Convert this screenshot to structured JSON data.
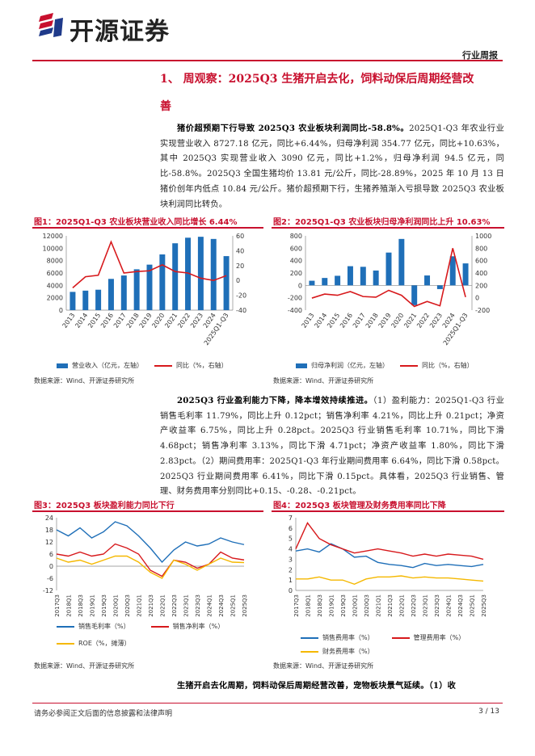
{
  "header": {
    "company": "开源证券",
    "report_type": "行业周报",
    "logo_colors": [
      "#c8102e",
      "#1f3a8a"
    ]
  },
  "section": {
    "title_line1": "1、 周观察：2025Q3 生猪开启去化，饲料动保后周期经营改",
    "title_line2": "善"
  },
  "paragraph1": {
    "lead": "猪价超预期下行导致 2025Q3 农业板块利润同比-58.8%。",
    "body": "2025Q1-Q3 年农业行业实现营业收入 8727.18 亿元，同比+6.44%，归母净利润 354.77 亿元，同比+10.63%，其中 2025Q3 实现营业收入 3090 亿元，同比+1.2%，归母净利润 94.5 亿元，同比-58.8%。2025Q3 全国生猪均价 13.81 元/公斤，同比-28.89%，2025 年 10 月 13 日猪价创年内低点 10.84 元/公斤。猪价超预期下行，生猪养殖渐入亏损导致 2025Q3 农业板块利润同比转负。"
  },
  "paragraph2": {
    "lead": "2025Q3 行业盈利能力下降，降本增效持续推进。",
    "body": "（1）盈利能力：2025Q1-Q3 行业销售毛利率 11.79%，同比上升 0.12pct；销售净利率 4.21%，同比上升 0.21pct；净资产收益率 6.75%，同比上升 0.28pct。2025Q3 行业销售毛利率 10.71%，同比下滑 4.68pct；销售净利率 3.13%，同比下滑 4.71pct；净资产收益率 1.80%，同比下滑 2.83pct。（2）期间费用率：2025Q1-Q3 年行业期间费用率 6.64%，同比下滑 0.58pct。2025Q3 行业期间费用率 6.41%，同比下滑 0.15pct。具体看，2025Q3 行业销售、管理、财务费用率分别同比+0.15、-0.28、-0.21pct。"
  },
  "paragraph3": {
    "lead": "生猪开启去化周期，饲料动保后周期经营改善，宠物板块景气延续。",
    "body": "（1）收"
  },
  "figures": {
    "fig1_title": "图1：2025Q1-Q3 农业板块营业收入同比增长 6.44%",
    "fig2_title": "图2：2025Q1-Q3 农业板块归母净利润同比上升 10.63%",
    "fig3_title": "图3：2025Q3 板块盈利能力同比下行",
    "fig4_title": "图4：2025Q3 板块管理及财务费用率同比下降",
    "source": "数据来源：Wind、开源证券研究所"
  },
  "footer": {
    "disclaimer": "请务必参阅正文后面的信息披露和法律声明",
    "page": "3 / 13"
  },
  "chart_data": [
    {
      "type": "bar",
      "id": "fig1",
      "categories": [
        "2013",
        "2014",
        "2015",
        "2016",
        "2017",
        "2018",
        "2019",
        "2020",
        "2021",
        "2022",
        "2023",
        "2024",
        "2025Q1-Q3"
      ],
      "series": [
        {
          "name": "营业收入（亿元，左轴）",
          "type": "bar",
          "axis": "left",
          "color": "#1f6fb8",
          "values": [
            2950,
            3150,
            3300,
            5050,
            5600,
            6600,
            7350,
            9000,
            10800,
            11700,
            11850,
            11500,
            8727
          ]
        },
        {
          "name": "同比（%，右轴）",
          "type": "line",
          "axis": "right",
          "color": "#d7191c",
          "values": [
            -10,
            5,
            7,
            52,
            10,
            12,
            13,
            21,
            12,
            10,
            3,
            0,
            6.44
          ]
        }
      ],
      "yleft": {
        "min": 0,
        "max": 12000,
        "ticks": [
          0,
          2000,
          4000,
          6000,
          8000,
          10000,
          12000
        ]
      },
      "yright": {
        "min": -40,
        "max": 60,
        "ticks": [
          -40,
          -20,
          0,
          20,
          40,
          60
        ]
      }
    },
    {
      "type": "bar",
      "id": "fig2",
      "categories": [
        "2013",
        "2014",
        "2015",
        "2016",
        "2017",
        "2018",
        "2019",
        "2020",
        "2021",
        "2022",
        "2023",
        "2024",
        "2025Q1-Q3"
      ],
      "series": [
        {
          "name": "归母净利润（亿元，左轴）",
          "type": "bar",
          "axis": "left",
          "color": "#1f6fb8",
          "values": [
            75,
            120,
            155,
            310,
            300,
            240,
            530,
            750,
            -320,
            160,
            -60,
            470,
            355
          ]
        },
        {
          "name": "同比（%，右轴）",
          "type": "line",
          "axis": "right",
          "color": "#d7191c",
          "values": [
            -5,
            60,
            40,
            100,
            20,
            10,
            120,
            40,
            -140,
            -60,
            -130,
            800,
            10.63
          ]
        }
      ],
      "yleft": {
        "min": -400,
        "max": 800,
        "ticks": [
          -400,
          -200,
          0,
          200,
          400,
          600,
          800
        ]
      },
      "yright": {
        "min": -200,
        "max": 1000,
        "ticks": [
          -200,
          0,
          200,
          400,
          600,
          800,
          1000
        ]
      }
    },
    {
      "type": "line",
      "id": "fig3",
      "categories": [
        "2017Q3",
        "2018Q1",
        "2018Q3",
        "2019Q1",
        "2019Q3",
        "2020Q1",
        "2020Q3",
        "2021Q1",
        "2021Q3",
        "2022Q1",
        "2022Q3",
        "2023Q1",
        "2023Q3",
        "2024Q1",
        "2024Q3",
        "2025Q1",
        "2025Q3"
      ],
      "series": [
        {
          "name": "销售毛利率（%）",
          "color": "#1f6fb8",
          "values": [
            18,
            15,
            19,
            14,
            17,
            22,
            20,
            15,
            9,
            2,
            8,
            12,
            10,
            11,
            14,
            12,
            10.7
          ]
        },
        {
          "name": "销售净利率（%）",
          "color": "#d7191c",
          "values": [
            6,
            5,
            7,
            5,
            6,
            11,
            9,
            6,
            -2,
            -5,
            3,
            2,
            -1,
            1,
            7,
            4,
            3.1
          ]
        },
        {
          "name": "ROE（%，摊薄）",
          "color": "#f5b800",
          "values": [
            4,
            2,
            3,
            1,
            3,
            5,
            5,
            2,
            -3,
            -6,
            3,
            1,
            -2,
            1,
            4,
            2,
            1.8
          ]
        }
      ],
      "yticks": [
        -12,
        -6,
        0,
        6,
        12,
        18,
        24
      ],
      "ylim": [
        -12,
        24
      ]
    },
    {
      "type": "line",
      "id": "fig4",
      "categories": [
        "2017Q3",
        "2018Q1",
        "2018Q3",
        "2019Q1",
        "2019Q3",
        "2020Q1",
        "2020Q3",
        "2021Q1",
        "2021Q3",
        "2022Q1",
        "2022Q3",
        "2023Q1",
        "2023Q3",
        "2024Q1",
        "2024Q3",
        "2025Q1",
        "2025Q3"
      ],
      "series": [
        {
          "name": "销售费用率（%）",
          "color": "#1f6fb8",
          "values": [
            3.8,
            4.0,
            3.7,
            4.5,
            4.0,
            3.2,
            3.3,
            2.7,
            2.5,
            2.4,
            2.2,
            2.6,
            2.4,
            2.5,
            2.4,
            2.3,
            2.5
          ]
        },
        {
          "name": "管理费用率（%）",
          "color": "#d7191c",
          "values": [
            4.0,
            6.5,
            5.0,
            4.4,
            4.0,
            3.6,
            3.8,
            4.0,
            3.8,
            3.6,
            3.3,
            3.5,
            3.3,
            3.5,
            3.4,
            3.3,
            3.0
          ]
        },
        {
          "name": "财务费用率（%）",
          "color": "#f5b800",
          "values": [
            1.1,
            1.1,
            1.3,
            1.0,
            1.0,
            0.6,
            1.1,
            1.3,
            1.3,
            1.4,
            1.2,
            1.3,
            1.2,
            1.2,
            1.1,
            1.0,
            0.9
          ]
        }
      ],
      "yticks": [
        0,
        1,
        2,
        3,
        4,
        5,
        6,
        7
      ],
      "ylim": [
        0,
        7
      ]
    }
  ]
}
